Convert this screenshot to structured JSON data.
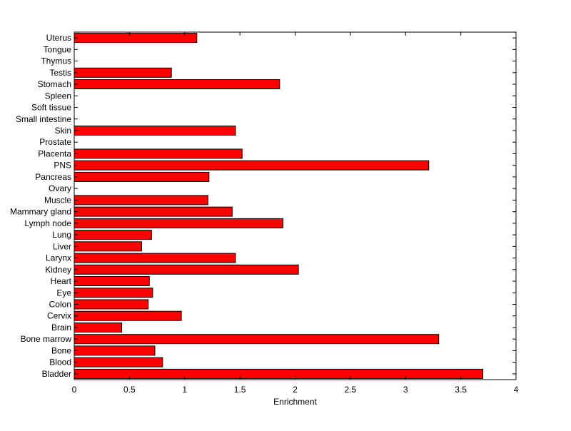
{
  "chart_data": {
    "type": "bar",
    "orientation": "horizontal",
    "categories": [
      "Uterus",
      "Tongue",
      "Thymus",
      "Testis",
      "Stomach",
      "Spleen",
      "Soft tissue",
      "Small intestine",
      "Skin",
      "Prostate",
      "Placenta",
      "PNS",
      "Pancreas",
      "Ovary",
      "Muscle",
      "Mammary gland",
      "Lymph node",
      "Lung",
      "Liver",
      "Larynx",
      "Kidney",
      "Heart",
      "Eye",
      "Colon",
      "Cervix",
      "Brain",
      "Bone marrow",
      "Bone",
      "Blood",
      "Bladder"
    ],
    "values": [
      1.11,
      0,
      0,
      0.88,
      1.86,
      0,
      0,
      0,
      1.46,
      0,
      1.52,
      3.21,
      1.22,
      0,
      1.21,
      1.43,
      1.89,
      0.7,
      0.61,
      1.46,
      2.03,
      0.68,
      0.71,
      0.67,
      0.97,
      0.43,
      3.3,
      0.73,
      0.8,
      3.7
    ],
    "xlabel": "Enrichment",
    "ylabel": "",
    "title": "",
    "xlim": [
      0,
      4
    ],
    "xticks": [
      0,
      0.5,
      1,
      1.5,
      2,
      2.5,
      3,
      3.5,
      4
    ],
    "xtick_labels": [
      "0",
      "0.5",
      "1",
      "1.5",
      "2",
      "2.5",
      "3",
      "3.5",
      "4"
    ],
    "bar_color": "#ff0000",
    "edge_color": "#000000",
    "grid": false,
    "legend": "none"
  }
}
